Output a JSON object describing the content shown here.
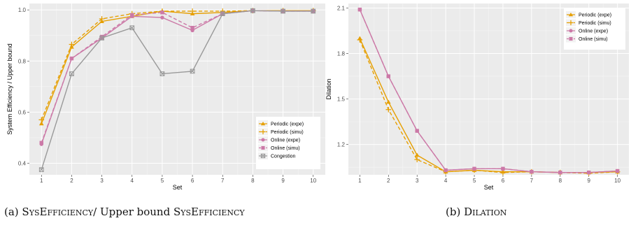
{
  "chart_data": [
    {
      "type": "line",
      "xlabel": "Set",
      "ylabel": "System Efficiency / Upper bound",
      "x": [
        1,
        2,
        3,
        4,
        5,
        6,
        7,
        8,
        9,
        10
      ],
      "xlim": [
        0.6,
        10.4
      ],
      "ylim": [
        0.355,
        1.025
      ],
      "yticks": [
        0.4,
        0.6,
        0.8,
        1.0
      ],
      "ytick_labels": [
        "0.4",
        "0.6",
        "0.8",
        "1.0"
      ],
      "grid": true,
      "legend_position": "bottom-right",
      "series": [
        {
          "name": "Periodic (expe)",
          "values": [
            0.555,
            0.855,
            0.955,
            0.975,
            0.995,
            0.985,
            0.99,
            0.997,
            0.997,
            0.997
          ],
          "color": "#E69F00",
          "dash": "solid",
          "marker": "triangle"
        },
        {
          "name": "Periodic (simu)",
          "values": [
            0.57,
            0.865,
            0.965,
            0.985,
            0.995,
            0.995,
            0.995,
            0.997,
            0.997,
            0.997
          ],
          "color": "#E69F00",
          "dash": "dashed",
          "marker": "plus"
        },
        {
          "name": "Online (expe)",
          "values": [
            0.475,
            0.81,
            0.89,
            0.975,
            0.97,
            0.92,
            0.985,
            0.997,
            0.995,
            0.995
          ],
          "color": "#CC79A7",
          "dash": "solid",
          "marker": "circle"
        },
        {
          "name": "Online (simu)",
          "values": [
            0.48,
            0.81,
            0.895,
            0.98,
            0.99,
            0.93,
            0.985,
            0.997,
            0.995,
            0.995
          ],
          "color": "#CC79A7",
          "dash": "dashed",
          "marker": "square"
        },
        {
          "name": "Congestion",
          "values": [
            0.375,
            0.75,
            0.89,
            0.93,
            0.75,
            0.76,
            0.985,
            0.997,
            0.995,
            0.995
          ],
          "color": "#999999",
          "dash": "solid",
          "marker": "boxx"
        }
      ]
    },
    {
      "type": "line",
      "xlabel": "Set",
      "ylabel": "Dilation",
      "x": [
        1,
        2,
        3,
        4,
        5,
        6,
        7,
        8,
        9,
        10
      ],
      "xlim": [
        0.6,
        10.4
      ],
      "ylim": [
        1.0,
        2.13
      ],
      "yticks": [
        1.2,
        1.5,
        1.8,
        2.1
      ],
      "ytick_labels": [
        "1.2",
        "1.5",
        "1.8",
        "2.1"
      ],
      "grid": true,
      "legend_position": "top-right",
      "series": [
        {
          "name": "Periodic (expe)",
          "values": [
            1.9,
            1.48,
            1.13,
            1.02,
            1.03,
            1.02,
            1.02,
            1.015,
            1.015,
            1.02
          ],
          "color": "#E69F00",
          "dash": "solid",
          "marker": "triangle"
        },
        {
          "name": "Periodic (simu)",
          "values": [
            1.89,
            1.43,
            1.1,
            1.02,
            1.03,
            1.015,
            1.02,
            1.015,
            1.01,
            1.02
          ],
          "color": "#E69F00",
          "dash": "dashed",
          "marker": "plus"
        },
        {
          "name": "Online (expe)",
          "values": [
            2.09,
            1.65,
            1.29,
            1.03,
            1.04,
            1.04,
            1.02,
            1.015,
            1.015,
            1.025
          ],
          "color": "#CC79A7",
          "dash": "solid",
          "marker": "circle"
        },
        {
          "name": "Online (simu)",
          "values": [
            2.09,
            1.65,
            1.29,
            1.03,
            1.04,
            1.04,
            1.02,
            1.015,
            1.015,
            1.025
          ],
          "color": "#CC79A7",
          "dash": "dashed",
          "marker": "square"
        }
      ]
    }
  ],
  "captions": {
    "a": {
      "prefix": "(a) ",
      "sc1": "SysEfficiency",
      "mid": "/ Upper bound ",
      "sc2": "SysEfficiency"
    },
    "b": {
      "prefix": "(b) ",
      "sc1": "Dilation"
    }
  }
}
